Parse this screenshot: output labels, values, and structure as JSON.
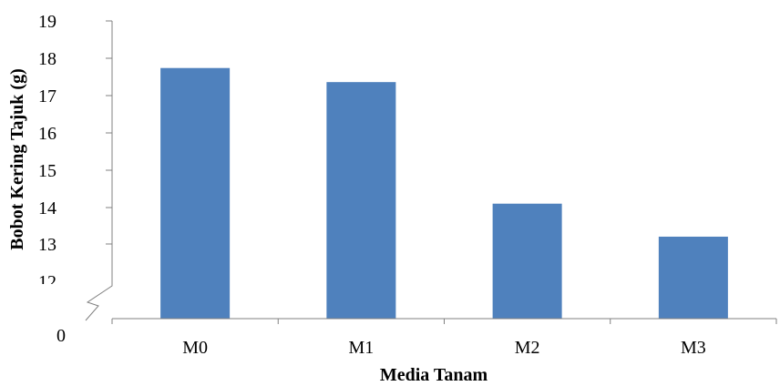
{
  "chart_data": {
    "type": "bar",
    "title": "",
    "xlabel": "Media Tanam",
    "ylabel": "Bobot Kering Tajuk (g)",
    "categories": [
      "M0",
      "M1",
      "M2",
      "M3"
    ],
    "values": [
      17.73,
      17.35,
      14.07,
      13.18
    ],
    "ylim": [
      12,
      19
    ],
    "axis_break": true,
    "y_ticks": [
      "19",
      "18",
      "17",
      "16",
      "15",
      "14",
      "13",
      "12",
      "0"
    ],
    "bar_color": "#4F81BD",
    "grid": false,
    "legend": "none"
  }
}
